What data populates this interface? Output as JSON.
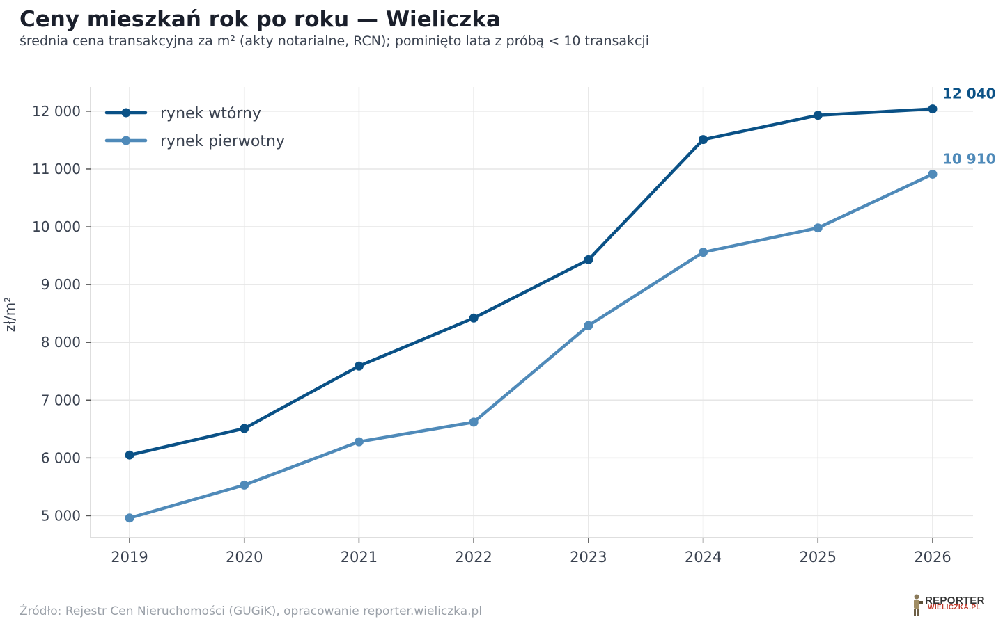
{
  "chart_data": {
    "type": "line",
    "title": "Ceny mieszkań rok po roku — Wieliczka",
    "subtitle": "średnia cena transakcyjna za m² (akty notarialne, RCN); pominięto lata z próbą < 10 transakcji",
    "xlabel": "",
    "ylabel": "zł/m²",
    "x": [
      "2019",
      "2020",
      "2021",
      "2022",
      "2023",
      "2024",
      "2025",
      "2026"
    ],
    "ylim": [
      4620,
      12420
    ],
    "yticks": [
      5000,
      6000,
      7000,
      8000,
      9000,
      10000,
      11000,
      12000
    ],
    "ytick_labels": [
      "5 000",
      "6 000",
      "7 000",
      "8 000",
      "9 000",
      "10 000",
      "11 000",
      "12 000"
    ],
    "grid": true,
    "legend_position": "top-left",
    "series": [
      {
        "name": "rynek wtórny",
        "color": "#0a5186",
        "values": [
          6050,
          6510,
          7590,
          8420,
          9430,
          11510,
          11930,
          12040
        ],
        "end_label": "12 040"
      },
      {
        "name": "rynek pierwotny",
        "color": "#4f8ab9",
        "values": [
          4960,
          5530,
          6280,
          6620,
          8290,
          9560,
          9980,
          10910
        ],
        "end_label": "10 910"
      }
    ]
  },
  "footer": {
    "source": "Źródło: Rejestr Cen Nieruchomości (GUGiK), opracowanie reporter.wieliczka.pl"
  },
  "logo": {
    "line1": "REPORTER",
    "line2": "WIELICZKA.PL"
  }
}
